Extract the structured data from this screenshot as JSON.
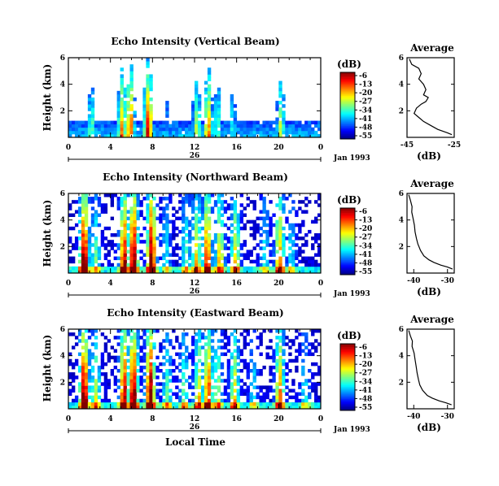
{
  "chart_data": [
    {
      "type": "heatmap",
      "title": "Echo Intensity (Vertical Beam)",
      "ylabel": "Height (km)",
      "ylim": [
        0,
        6
      ],
      "yticks": [
        "2",
        "4",
        "6"
      ],
      "xticks": [
        "0",
        "4",
        "8",
        "12",
        "16",
        "20",
        "0"
      ],
      "xlim": [
        0,
        24
      ],
      "date_label": "26",
      "month_label": "Jan 1993",
      "colorbar": {
        "unit": "(dB)",
        "ticks": [
          "-6",
          "-13",
          "-20",
          "-27",
          "-34",
          "-41",
          "-48",
          "-55"
        ],
        "range": [
          -55,
          -6
        ]
      },
      "profile": {
        "title": "Average",
        "xlabel": "(dB)",
        "xlim": [
          -45,
          -25
        ],
        "xticks": [
          "-45",
          "-25"
        ],
        "yticks": [
          "2",
          "4",
          "6"
        ],
        "points": [
          [
            -44,
            5.9
          ],
          [
            -43,
            5.5
          ],
          [
            -40,
            5.2
          ],
          [
            -39,
            4.8
          ],
          [
            -40,
            4.4
          ],
          [
            -38,
            4.0
          ],
          [
            -37,
            3.6
          ],
          [
            -38,
            3.2
          ],
          [
            -36,
            3.0
          ],
          [
            -37,
            2.7
          ],
          [
            -39,
            2.5
          ],
          [
            -41,
            2.2
          ],
          [
            -42,
            1.8
          ],
          [
            -40,
            1.5
          ],
          [
            -38,
            1.2
          ],
          [
            -35,
            0.9
          ],
          [
            -32,
            0.6
          ],
          [
            -28,
            0.35
          ],
          [
            -26,
            0.2
          ]
        ]
      },
      "events": [
        [
          2.2,
          0.5
        ],
        [
          5.1,
          0.8
        ],
        [
          5.9,
          0.9
        ],
        [
          7.6,
          1.0
        ],
        [
          9.5,
          0.3
        ],
        [
          12.2,
          0.6
        ],
        [
          13.3,
          0.8
        ],
        [
          14.2,
          0.5
        ],
        [
          15.6,
          0.4
        ],
        [
          19.2,
          0.2
        ],
        [
          20.2,
          0.6
        ]
      ]
    },
    {
      "type": "heatmap",
      "title": "Echo Intensity (Northward Beam)",
      "ylabel": "Height (km)",
      "ylim": [
        0,
        6
      ],
      "yticks": [
        "2",
        "4",
        "6"
      ],
      "xticks": [
        "0",
        "4",
        "8",
        "12",
        "16",
        "20",
        "0"
      ],
      "xlim": [
        0,
        24
      ],
      "date_label": "26",
      "month_label": "Jan 1993",
      "colorbar": {
        "unit": "(dB)",
        "ticks": [
          "-6",
          "-13",
          "-20",
          "-27",
          "-34",
          "-41",
          "-48",
          "-55"
        ],
        "range": [
          -55,
          -6
        ]
      },
      "profile": {
        "title": "Average",
        "xlabel": "(dB)",
        "xlim": [
          -42,
          -28
        ],
        "xticks": [
          "-40",
          "-30"
        ],
        "yticks": [
          "2",
          "4",
          "6"
        ],
        "points": [
          [
            -41.5,
            5.9
          ],
          [
            -41,
            5.5
          ],
          [
            -40.5,
            5.0
          ],
          [
            -40.6,
            4.6
          ],
          [
            -40.2,
            4.1
          ],
          [
            -39.8,
            3.6
          ],
          [
            -39.6,
            3.1
          ],
          [
            -39.2,
            2.6
          ],
          [
            -38.8,
            2.2
          ],
          [
            -38.0,
            1.7
          ],
          [
            -37.0,
            1.3
          ],
          [
            -35.5,
            1.0
          ],
          [
            -34.0,
            0.8
          ],
          [
            -32.0,
            0.6
          ],
          [
            -30.0,
            0.45
          ],
          [
            -28.5,
            0.3
          ]
        ]
      },
      "events": [
        [
          1.5,
          1.0
        ],
        [
          2.6,
          0.4
        ],
        [
          5.3,
          0.9
        ],
        [
          6.2,
          1.0
        ],
        [
          7.9,
          1.0
        ],
        [
          9.3,
          0.3
        ],
        [
          11.2,
          0.4
        ],
        [
          12.2,
          0.6
        ],
        [
          13.2,
          0.8
        ],
        [
          14.4,
          0.6
        ],
        [
          15.9,
          0.6
        ],
        [
          18.7,
          0.3
        ],
        [
          20.1,
          0.7
        ],
        [
          21.2,
          0.3
        ]
      ]
    },
    {
      "type": "heatmap",
      "title": "Echo Intensity (Eastward Beam)",
      "ylabel": "Height (km)",
      "ylim": [
        0,
        6
      ],
      "yticks": [
        "2",
        "4",
        "6"
      ],
      "xticks": [
        "0",
        "4",
        "8",
        "12",
        "16",
        "20",
        "0"
      ],
      "xlim": [
        0,
        24
      ],
      "date_label": "26",
      "month_label": "Jan 1993",
      "xlabel": "Local Time",
      "colorbar": {
        "unit": "(dB)",
        "ticks": [
          "-6",
          "-13",
          "-20",
          "-27",
          "-34",
          "-41",
          "-48",
          "-55"
        ],
        "range": [
          -55,
          -6
        ]
      },
      "profile": {
        "title": "Average",
        "xlabel": "(dB)",
        "xlim": [
          -42,
          -28
        ],
        "xticks": [
          "-40",
          "-30"
        ],
        "yticks": [
          "2",
          "4",
          "6"
        ],
        "points": [
          [
            -41.5,
            5.9
          ],
          [
            -41.0,
            5.5
          ],
          [
            -40.4,
            5.1
          ],
          [
            -40.5,
            4.7
          ],
          [
            -39.9,
            4.2
          ],
          [
            -39.6,
            3.7
          ],
          [
            -39.3,
            3.2
          ],
          [
            -39.0,
            2.7
          ],
          [
            -38.6,
            2.2
          ],
          [
            -38.2,
            1.8
          ],
          [
            -37.4,
            1.4
          ],
          [
            -36.0,
            1.0
          ],
          [
            -34.5,
            0.8
          ],
          [
            -32.5,
            0.6
          ],
          [
            -30.5,
            0.45
          ],
          [
            -28.8,
            0.3
          ]
        ]
      },
      "events": [
        [
          1.5,
          1.0
        ],
        [
          2.6,
          0.5
        ],
        [
          5.3,
          0.9
        ],
        [
          6.2,
          1.0
        ],
        [
          7.8,
          1.0
        ],
        [
          9.4,
          0.4
        ],
        [
          11.0,
          0.4
        ],
        [
          12.4,
          0.6
        ],
        [
          13.3,
          0.8
        ],
        [
          14.2,
          0.5
        ],
        [
          15.8,
          0.6
        ],
        [
          17.6,
          0.3
        ],
        [
          20.1,
          0.7
        ],
        [
          22.5,
          0.3
        ]
      ]
    }
  ]
}
